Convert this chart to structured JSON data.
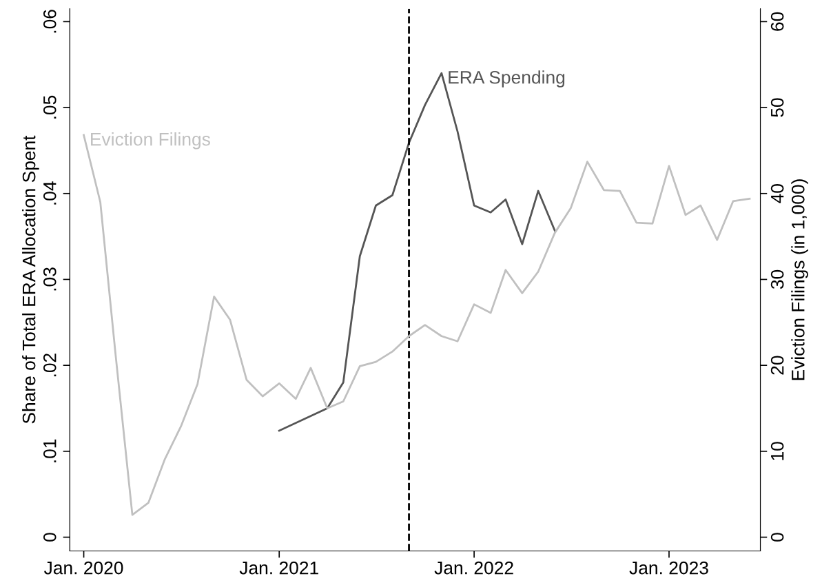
{
  "chart_data": {
    "type": "line",
    "ylabel": "Share of Total ERA Allocation Spent",
    "y2label": "Eviction Filings (in 1,000)",
    "xlim": [
      "2019-12-06",
      "2023-06-21"
    ],
    "xticks": [
      {
        "value": "2020-01",
        "label": "Jan. 2020"
      },
      {
        "value": "2021-01",
        "label": "Jan. 2021"
      },
      {
        "value": "2022-01",
        "label": "Jan. 2022"
      },
      {
        "value": "2023-01",
        "label": "Jan. 2023"
      }
    ],
    "ylim": [
      -0.0016,
      0.0615
    ],
    "yticks": [
      0,
      {
        "value": 0.01,
        "label": ".01"
      },
      {
        "value": 0.02,
        "label": ".02"
      },
      {
        "value": 0.03,
        "label": ".03"
      },
      {
        "value": 0.04,
        "label": ".04"
      },
      {
        "value": 0.05,
        "label": ".05"
      },
      {
        "value": 0.06,
        "label": ".06"
      }
    ],
    "y2lim": [
      -1.6,
      61.5
    ],
    "y2ticks": [
      0,
      10,
      20,
      30,
      40,
      50,
      60
    ],
    "grid": false,
    "legend": false,
    "marker": "none",
    "line_style": "solid",
    "series": [
      {
        "name": "Eviction Filings",
        "color": "#c0c0c0",
        "axis": "y2",
        "x": [
          "2020-01",
          "2020-02",
          "2020-03",
          "2020-04",
          "2020-05",
          "2020-06",
          "2020-07",
          "2020-08",
          "2020-09",
          "2020-10",
          "2020-11",
          "2020-12",
          "2021-01",
          "2021-02",
          "2021-03",
          "2021-04",
          "2021-05",
          "2021-06",
          "2021-07",
          "2021-08",
          "2021-09",
          "2021-10",
          "2021-11",
          "2021-12",
          "2022-01",
          "2022-02",
          "2022-03",
          "2022-04",
          "2022-05",
          "2022-06",
          "2022-07",
          "2022-08",
          "2022-09",
          "2022-10",
          "2022-11",
          "2022-12",
          "2023-01",
          "2023-02",
          "2023-03",
          "2023-04",
          "2023-05",
          "2023-06"
        ],
        "values": [
          46.8,
          39.0,
          21.0,
          2.6,
          4.0,
          9.1,
          12.9,
          17.8,
          28.0,
          25.3,
          18.3,
          16.4,
          17.9,
          16.1,
          19.7,
          15.0,
          15.8,
          19.9,
          20.4,
          21.6,
          23.4,
          24.7,
          23.4,
          22.8,
          27.1,
          26.1,
          31.1,
          28.4,
          30.9,
          35.4,
          38.3,
          43.7,
          40.4,
          40.3,
          36.6,
          36.5,
          43.2,
          37.5,
          38.6,
          34.6,
          39.1,
          39.4
        ]
      },
      {
        "name": "ERA Spending",
        "color": "#555555",
        "x": [
          "2021-01",
          "2021-04",
          "2021-05",
          "2021-06",
          "2021-07",
          "2021-08",
          "2021-09",
          "2021-10",
          "2021-11",
          "2021-12",
          "2022-01",
          "2022-02",
          "2022-03",
          "2022-04",
          "2022-05",
          "2022-06"
        ],
        "values": [
          0.0124,
          0.015,
          0.018,
          0.0327,
          0.0386,
          0.0398,
          0.0459,
          0.0503,
          0.054,
          0.0472,
          0.0386,
          0.0378,
          0.0393,
          0.0341,
          0.0403,
          0.0357
        ]
      }
    ],
    "ref_lines": [
      {
        "axis": "x",
        "value": "2021-09",
        "label": null,
        "color": "#000000",
        "line_style": "dashed"
      }
    ]
  }
}
